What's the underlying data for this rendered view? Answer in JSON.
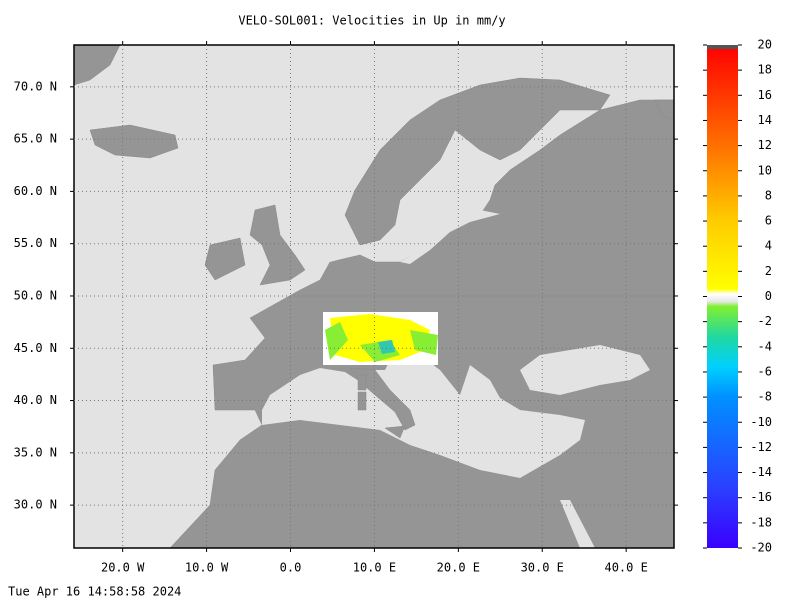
{
  "title": "VELO-SOL001: Velocities in Up in mm/y",
  "map": {
    "xlim": [
      -25.8,
      45.7
    ],
    "ylim": [
      25.9,
      74.0
    ],
    "grid": true,
    "xticks": [
      {
        "value": -20,
        "label": "20.0 W"
      },
      {
        "value": -10,
        "label": "10.0 W"
      },
      {
        "value": 0,
        "label": "0.0"
      },
      {
        "value": 10,
        "label": "10.0 E"
      },
      {
        "value": 20,
        "label": "20.0 E"
      },
      {
        "value": 30,
        "label": "30.0 E"
      },
      {
        "value": 40,
        "label": "40.0 E"
      }
    ],
    "yticks": [
      {
        "value": 30,
        "label": "30.0 N"
      },
      {
        "value": 35,
        "label": "35.0 N"
      },
      {
        "value": 40,
        "label": "40.0 N"
      },
      {
        "value": 45,
        "label": "45.0 N"
      },
      {
        "value": 50,
        "label": "50.0 N"
      },
      {
        "value": 55,
        "label": "55.0 N"
      },
      {
        "value": 60,
        "label": "60.0 N"
      },
      {
        "value": 65,
        "label": "65.0 N"
      },
      {
        "value": 70,
        "label": "70.0 N"
      }
    ]
  },
  "colorbar": {
    "range": [
      -20,
      20
    ],
    "ticks": [
      -20,
      -18,
      -16,
      -14,
      -12,
      -10,
      -8,
      -6,
      -4,
      -2,
      0,
      2,
      4,
      6,
      8,
      10,
      12,
      14,
      16,
      18,
      20
    ]
  },
  "timestamp": "Tue Apr 16 14:58:58 2024"
}
